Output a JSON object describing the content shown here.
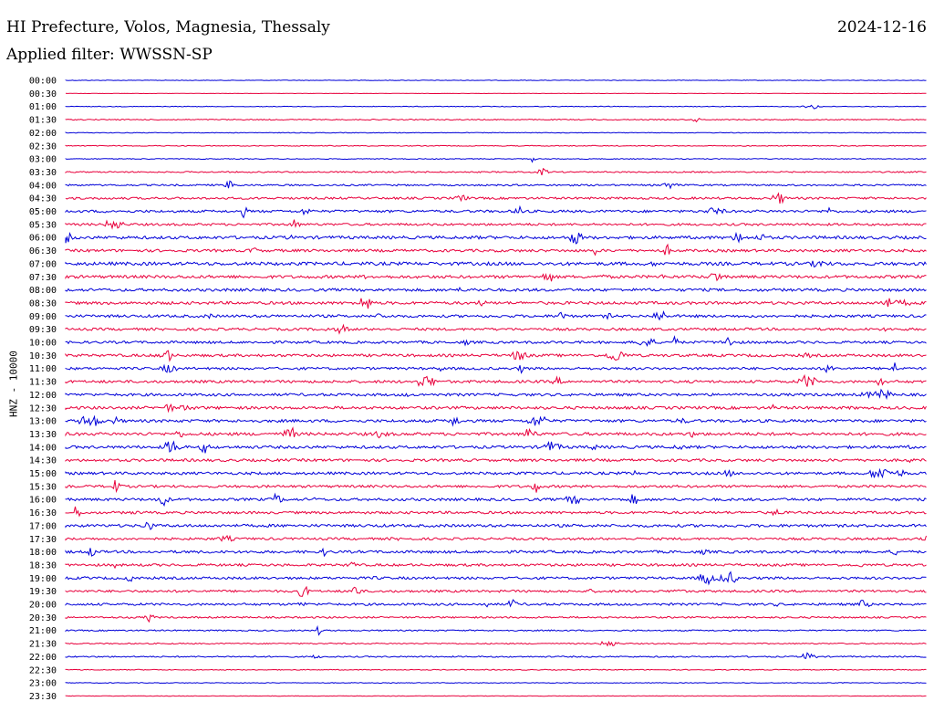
{
  "header": {
    "title": "HI Prefecture, Volos, Magnesia, Thessaly",
    "date": "2024-12-16",
    "filter": "Applied filter: WWSSN-SP"
  },
  "chart_data": {
    "type": "helicorder",
    "ylabel": "HNZ - 10000",
    "row_labels": [
      "00:00",
      "00:30",
      "01:00",
      "01:30",
      "02:00",
      "02:30",
      "03:00",
      "03:30",
      "04:00",
      "04:30",
      "05:00",
      "05:30",
      "06:00",
      "06:30",
      "07:00",
      "07:30",
      "08:00",
      "08:30",
      "09:00",
      "09:30",
      "10:00",
      "10:30",
      "11:00",
      "11:30",
      "12:00",
      "12:30",
      "13:00",
      "13:30",
      "14:00",
      "14:30",
      "15:00",
      "15:30",
      "16:00",
      "16:30",
      "17:00",
      "17:30",
      "18:00",
      "18:30",
      "19:00",
      "19:30",
      "20:00",
      "20:30",
      "21:00",
      "21:30",
      "22:00",
      "22:30",
      "23:00",
      "23:30"
    ],
    "colors": [
      "#0000d8",
      "#e8003c"
    ],
    "noise_level": [
      0.3,
      0.2,
      0.4,
      0.6,
      0.4,
      0.5,
      0.5,
      0.8,
      1.0,
      1.3,
      1.5,
      1.4,
      1.8,
      1.6,
      2.0,
      1.8,
      1.7,
      1.7,
      1.6,
      1.5,
      1.5,
      1.6,
      1.5,
      1.6,
      1.6,
      1.7,
      1.7,
      1.8,
      1.7,
      1.6,
      1.6,
      1.5,
      1.6,
      1.5,
      1.7,
      1.4,
      1.6,
      1.5,
      1.5,
      1.4,
      1.4,
      1.0,
      0.8,
      0.7,
      0.8,
      0.5,
      0.4,
      0.3
    ]
  }
}
